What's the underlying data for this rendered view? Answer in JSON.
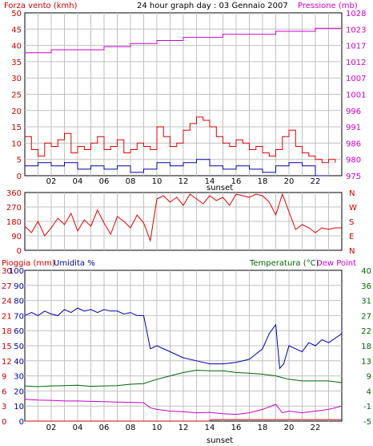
{
  "title": "24 hour graph day : 03 Gennaio 2007",
  "colors": {
    "wind": "#e00000",
    "pressure": "#cc00cc",
    "humidity": "#0000aa",
    "temperature": "#006600",
    "dewpoint": "#cc00cc",
    "rain": "#cc0000",
    "frame": "#000000",
    "grid": "#c0c0c0"
  },
  "x_labels": [
    "02",
    "04",
    "06",
    "08",
    "10",
    "12",
    "14",
    "16",
    "18",
    "20",
    "22"
  ],
  "sunset_label": "sunset",
  "chart_data": [
    {
      "type": "line",
      "panel": "wind-pressure",
      "left_axis_label": "Forza vento (kmh)",
      "right_axis_label": "Pressione (mb)",
      "left_ticks": [
        "0",
        "5",
        "10",
        "15",
        "20",
        "25",
        "30",
        "35",
        "40",
        "45",
        "50"
      ],
      "right_ticks": [
        "975",
        "980",
        "986",
        "991",
        "996",
        "1001",
        "1007",
        "1012",
        "1017",
        "1023",
        "1028"
      ],
      "ylim_left": [
        0,
        50
      ],
      "ylim_right": [
        975,
        1028
      ],
      "xlim_hours": [
        0,
        24
      ],
      "series": [
        {
          "name": "wind_speed",
          "x": [
            0,
            0.5,
            1,
            1.5,
            2,
            2.5,
            3,
            3.5,
            4,
            4.5,
            5,
            5.5,
            6,
            6.5,
            7,
            7.5,
            8,
            8.5,
            9,
            9.5,
            10,
            10.5,
            11,
            11.5,
            12,
            12.5,
            13,
            13.5,
            14,
            14.5,
            15,
            15.5,
            16,
            16.5,
            17,
            17.5,
            18,
            18.5,
            19,
            19.5,
            20,
            20.5,
            21,
            21.5,
            22,
            22.5,
            23,
            23.5
          ],
          "y": [
            12,
            8,
            6,
            10,
            9,
            11,
            13,
            7,
            9,
            8,
            10,
            12,
            8,
            9,
            11,
            7,
            8,
            10,
            9,
            8,
            15,
            12,
            9,
            10,
            14,
            16,
            18,
            17,
            15,
            12,
            10,
            9,
            11,
            10,
            8,
            9,
            7,
            6,
            8,
            12,
            14,
            9,
            7,
            6,
            5,
            4,
            5,
            4
          ]
        },
        {
          "name": "wind_gust_low",
          "x": [
            0,
            1,
            2,
            3,
            4,
            5,
            6,
            7,
            8,
            9,
            10,
            11,
            12,
            13,
            14,
            15,
            16,
            17,
            18,
            19,
            20,
            21,
            22,
            23
          ],
          "y": [
            3,
            4,
            3,
            4,
            2,
            3,
            2,
            3,
            1,
            2,
            4,
            3,
            4,
            5,
            3,
            2,
            3,
            2,
            1,
            3,
            4,
            3,
            0,
            0
          ]
        },
        {
          "name": "pressure",
          "x": [
            0,
            1,
            2,
            3,
            4,
            5,
            6,
            7,
            8,
            9,
            10,
            11,
            12,
            13,
            14,
            15,
            16,
            17,
            18,
            19,
            20,
            21,
            22,
            23,
            24
          ],
          "y": [
            1015,
            1015,
            1016,
            1016,
            1016,
            1016,
            1017,
            1017,
            1018,
            1018,
            1019,
            1019,
            1020,
            1020,
            1020,
            1021,
            1021,
            1021,
            1021,
            1022,
            1022,
            1022,
            1023,
            1023,
            1023
          ]
        }
      ]
    },
    {
      "type": "line",
      "panel": "wind-direction",
      "left_ticks": [
        "0",
        "90",
        "180",
        "270",
        "360"
      ],
      "right_ticks": [
        "N",
        "E",
        "S",
        "W",
        "N"
      ],
      "ylim": [
        0,
        360
      ],
      "series": [
        {
          "name": "wind_direction",
          "x": [
            0,
            0.5,
            1,
            1.5,
            2,
            2.5,
            3,
            3.5,
            4,
            4.5,
            5,
            5.5,
            6,
            6.5,
            7,
            7.5,
            8,
            8.5,
            9,
            9.5,
            10,
            10.5,
            11,
            11.5,
            12,
            12.5,
            13,
            13.5,
            14,
            14.5,
            15,
            15.5,
            16,
            16.5,
            17,
            17.5,
            18,
            18.5,
            19,
            19.5,
            20,
            20.5,
            21,
            21.5,
            22,
            22.5,
            23,
            23.5,
            24
          ],
          "y": [
            150,
            110,
            180,
            90,
            140,
            200,
            160,
            230,
            120,
            190,
            150,
            250,
            170,
            100,
            210,
            180,
            140,
            220,
            170,
            60,
            320,
            340,
            300,
            330,
            280,
            350,
            320,
            290,
            340,
            310,
            330,
            280,
            350,
            340,
            330,
            350,
            340,
            300,
            220,
            350,
            240,
            130,
            160,
            140,
            110,
            140,
            130,
            140,
            140
          ]
        }
      ]
    },
    {
      "type": "line",
      "panel": "rain-humidity-temperature",
      "left_axis_label_1": "Pioggia (mm)",
      "left_axis_label_2": "Umidita %",
      "right_axis_label": "Temperatura (°C)",
      "right_axis_label_2": "Dew Point",
      "rain_ticks": [
        "0",
        "3",
        "6",
        "9",
        "12",
        "15",
        "18",
        "21",
        "24",
        "27",
        "30"
      ],
      "humidity_ticks": [
        "0",
        "10",
        "20",
        "30",
        "40",
        "50",
        "60",
        "70",
        "80",
        "90",
        "100"
      ],
      "temp_ticks": [
        "-5",
        "-1",
        "4",
        "9",
        "13",
        "18",
        "22",
        "27",
        "31",
        "36",
        "40"
      ],
      "ylim_humidity": [
        0,
        100
      ],
      "ylim_temp": [
        -5,
        40
      ],
      "series": [
        {
          "name": "humidity",
          "x": [
            0,
            0.5,
            1,
            1.5,
            2,
            2.5,
            3,
            3.5,
            4,
            4.5,
            5,
            5.5,
            6,
            6.5,
            7,
            7.5,
            8,
            8.5,
            9,
            9.5,
            10,
            11,
            12,
            13,
            14,
            15,
            16,
            17,
            18,
            18.5,
            19,
            19.3,
            19.6,
            20,
            20.5,
            21,
            21.5,
            22,
            22.5,
            23,
            23.5,
            24
          ],
          "y": [
            70,
            72,
            70,
            73,
            71,
            70,
            74,
            72,
            75,
            73,
            74,
            72,
            74,
            73,
            73,
            71,
            72,
            70,
            70,
            48,
            50,
            46,
            42,
            40,
            38,
            38,
            39,
            41,
            48,
            58,
            64,
            35,
            38,
            50,
            48,
            46,
            52,
            50,
            54,
            52,
            55,
            58
          ]
        },
        {
          "name": "temperature",
          "x": [
            0,
            1,
            2,
            3,
            4,
            5,
            6,
            7,
            8,
            9,
            10,
            11,
            12,
            13,
            14,
            15,
            16,
            17,
            18,
            19,
            20,
            21,
            22,
            23,
            24
          ],
          "y": [
            5.5,
            5.3,
            5.5,
            5.6,
            5.7,
            5.4,
            5.5,
            5.6,
            6.0,
            6.2,
            7.5,
            8.5,
            9.5,
            10.2,
            10.0,
            10.0,
            9.5,
            9.3,
            9.0,
            8.5,
            7.5,
            7.0,
            7.0,
            7.0,
            6.5
          ]
        },
        {
          "name": "dew_point",
          "x": [
            0,
            1,
            2,
            3,
            4,
            5,
            6,
            7,
            8,
            9,
            9.5,
            10,
            11,
            12,
            13,
            14,
            15,
            16,
            17,
            18,
            19,
            19.5,
            20,
            21,
            22,
            23,
            24
          ],
          "y": [
            1.5,
            1.3,
            1.2,
            1.0,
            1.0,
            0.9,
            0.8,
            0.7,
            0.6,
            0.5,
            -1.0,
            -1.5,
            -2.0,
            -2.2,
            -2.5,
            -2.4,
            -2.8,
            -3.0,
            -2.5,
            -1.5,
            0.0,
            -2.5,
            -2.0,
            -2.5,
            -2.0,
            -1.5,
            -0.5
          ]
        },
        {
          "name": "rain",
          "x": [
            0,
            14,
            14.1,
            24
          ],
          "y": [
            0,
            0,
            0.3,
            0.3
          ]
        }
      ]
    }
  ]
}
